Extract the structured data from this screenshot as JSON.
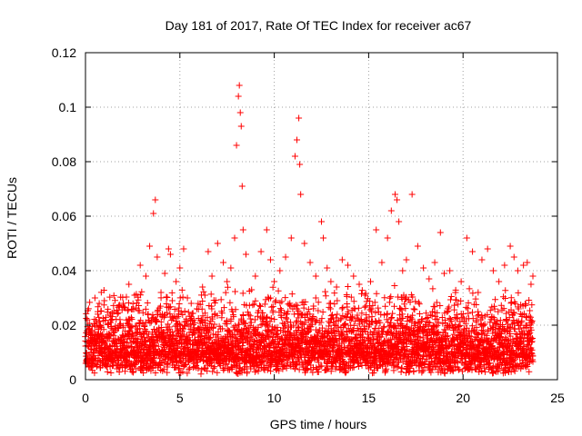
{
  "chart_data": {
    "type": "scatter",
    "title": "Day 181 of 2017, Rate Of TEC Index for receiver ac67",
    "xlabel": "GPS time / hours",
    "ylabel": "ROTI / TECUs",
    "xlim": [
      0,
      25
    ],
    "ylim": [
      0,
      0.12
    ],
    "xticks": [
      "0",
      "5",
      "10",
      "15",
      "20",
      "25"
    ],
    "yticks": [
      "0",
      "0.02",
      "0.04",
      "0.06",
      "0.08",
      "0.1",
      "0.12"
    ],
    "grid": true,
    "legend": "none",
    "marker": "plus",
    "color": "#ff0000",
    "series": [
      {
        "x": [
          0.1,
          0.3,
          0.5,
          0.8,
          1.0,
          1.2,
          1.5,
          1.8,
          2.0,
          2.3,
          2.6,
          2.9,
          3.2,
          3.4,
          3.6,
          3.7,
          3.8,
          4.0,
          4.2,
          4.4,
          4.5,
          4.8,
          5.0,
          5.2,
          5.4,
          5.6,
          5.9,
          6.2,
          6.5,
          6.7,
          7.0,
          7.3,
          7.5,
          7.7,
          7.9,
          8.0,
          8.1,
          8.15,
          8.2,
          8.25,
          8.3,
          8.35,
          8.5,
          8.8,
          9.0,
          9.3,
          9.6,
          9.8,
          10.0,
          10.3,
          10.6,
          10.9,
          11.1,
          11.2,
          11.3,
          11.35,
          11.4,
          11.6,
          11.9,
          12.2,
          12.5,
          12.6,
          12.8,
          13.0,
          13.3,
          13.6,
          13.9,
          14.2,
          14.5,
          14.8,
          15.1,
          15.4,
          15.7,
          16.0,
          16.2,
          16.4,
          16.5,
          16.6,
          16.8,
          17.0,
          17.3,
          17.6,
          17.9,
          18.2,
          18.5,
          18.8,
          19.0,
          19.3,
          19.6,
          19.9,
          20.2,
          20.5,
          20.8,
          21.0,
          21.3,
          21.6,
          21.9,
          22.2,
          22.5,
          22.7,
          22.9,
          23.2,
          23.4,
          23.6,
          23.7
        ],
        "y": [
          0.022,
          0.018,
          0.03,
          0.02,
          0.029,
          0.016,
          0.025,
          0.02,
          0.028,
          0.035,
          0.031,
          0.042,
          0.038,
          0.049,
          0.061,
          0.066,
          0.045,
          0.032,
          0.039,
          0.048,
          0.046,
          0.036,
          0.041,
          0.048,
          0.03,
          0.028,
          0.026,
          0.034,
          0.047,
          0.038,
          0.05,
          0.043,
          0.036,
          0.041,
          0.052,
          0.086,
          0.104,
          0.108,
          0.098,
          0.093,
          0.071,
          0.055,
          0.046,
          0.033,
          0.038,
          0.047,
          0.055,
          0.044,
          0.036,
          0.04,
          0.045,
          0.052,
          0.082,
          0.088,
          0.096,
          0.079,
          0.068,
          0.05,
          0.043,
          0.038,
          0.058,
          0.052,
          0.041,
          0.036,
          0.034,
          0.044,
          0.042,
          0.038,
          0.035,
          0.031,
          0.036,
          0.055,
          0.043,
          0.052,
          0.062,
          0.068,
          0.066,
          0.058,
          0.04,
          0.044,
          0.068,
          0.049,
          0.041,
          0.037,
          0.043,
          0.054,
          0.039,
          0.04,
          0.032,
          0.036,
          0.052,
          0.047,
          0.032,
          0.044,
          0.048,
          0.04,
          0.036,
          0.042,
          0.049,
          0.045,
          0.04,
          0.042,
          0.043,
          0.035,
          0.038
        ]
      }
    ],
    "noise_band": {
      "x_range": [
        0,
        23.7
      ],
      "y_low_range": [
        0.002,
        0.01
      ],
      "y_high_range": [
        0.015,
        0.035
      ]
    }
  }
}
